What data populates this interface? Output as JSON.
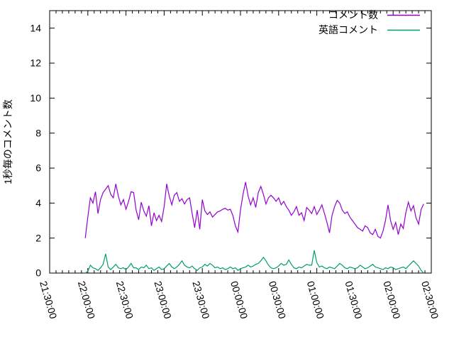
{
  "chart_data": {
    "type": "line",
    "title": "",
    "xlabel": "",
    "ylabel": "1秒毎のコメント数",
    "ylim": [
      0,
      15
    ],
    "ytick_step": 2,
    "ytick_labels": [
      "0",
      "2",
      "4",
      "6",
      "8",
      "10",
      "12",
      "14"
    ],
    "x_axis": {
      "range_minutes": [
        0,
        300
      ],
      "major_step_min": 30,
      "minor_step_min": 5,
      "labels": [
        "21:30:00",
        "22:00:00",
        "22:30:00",
        "23:00:00",
        "23:30:00",
        "00:00:00",
        "00:30:00",
        "01:00:00",
        "01:30:00",
        "02:00:00",
        "02:30:00"
      ]
    },
    "grid": false,
    "legend_position": "top-right-inside",
    "series": [
      {
        "name": "コメント数",
        "color": "#9400d3",
        "start_time": "21:58:00",
        "start_offset_min": 28,
        "step_min": 2,
        "values": [
          2.0,
          3.2,
          4.3,
          4.0,
          4.65,
          3.4,
          4.2,
          4.6,
          4.8,
          5.0,
          4.5,
          4.3,
          5.1,
          4.4,
          3.9,
          4.2,
          3.65,
          4.1,
          4.65,
          4.6,
          3.6,
          3.05,
          4.05,
          3.55,
          3.25,
          3.85,
          2.7,
          3.45,
          3.0,
          3.3,
          2.95,
          3.8,
          5.1,
          4.4,
          3.9,
          4.45,
          4.6,
          4.1,
          4.25,
          3.95,
          4.2,
          4.3,
          3.4,
          2.6,
          3.6,
          2.5,
          4.2,
          3.55,
          3.35,
          3.5,
          3.2,
          3.35,
          3.5,
          3.55,
          3.65,
          3.7,
          3.6,
          3.65,
          3.3,
          2.7,
          2.35,
          3.6,
          4.5,
          5.2,
          4.4,
          3.9,
          4.3,
          3.75,
          4.6,
          4.95,
          4.5,
          3.95,
          4.3,
          4.45,
          4.3,
          4.1,
          4.3,
          3.9,
          4.1,
          3.8,
          3.6,
          3.3,
          3.5,
          3.8,
          3.3,
          3.45,
          3.0,
          3.75,
          3.6,
          3.4,
          3.8,
          3.35,
          3.6,
          3.9,
          3.4,
          2.9,
          2.3,
          3.3,
          3.8,
          4.15,
          4.0,
          3.6,
          3.4,
          3.5,
          3.2,
          3.0,
          2.8,
          2.6,
          2.5,
          2.4,
          2.7,
          2.6,
          2.3,
          2.2,
          2.5,
          2.1,
          2.0,
          2.4,
          3.0,
          3.9,
          3.0,
          2.5,
          2.9,
          2.2,
          2.8,
          2.55,
          3.45,
          4.05,
          3.55,
          3.85,
          3.15,
          2.8,
          3.65,
          3.95
        ]
      },
      {
        "name": "英語コメント",
        "color": "#009e73",
        "start_time": "21:58:00",
        "start_offset_min": 28,
        "step_min": 2,
        "values": [
          0.0,
          0.1,
          0.45,
          0.3,
          0.25,
          0.15,
          0.3,
          0.5,
          1.1,
          0.35,
          0.2,
          0.35,
          0.5,
          0.3,
          0.25,
          0.3,
          0.2,
          0.35,
          0.55,
          0.3,
          0.3,
          0.2,
          0.35,
          0.3,
          0.45,
          0.25,
          0.3,
          0.15,
          0.25,
          0.35,
          0.2,
          0.25,
          0.4,
          0.55,
          0.35,
          0.25,
          0.35,
          0.5,
          0.7,
          0.45,
          0.35,
          0.3,
          0.4,
          0.25,
          0.15,
          0.3,
          0.35,
          0.5,
          0.4,
          0.55,
          0.45,
          0.3,
          0.35,
          0.25,
          0.3,
          0.2,
          0.25,
          0.35,
          0.25,
          0.3,
          0.15,
          0.25,
          0.3,
          0.35,
          0.45,
          0.35,
          0.4,
          0.5,
          0.55,
          0.7,
          0.9,
          0.7,
          0.45,
          0.3,
          0.25,
          0.3,
          0.4,
          0.55,
          0.45,
          0.5,
          0.75,
          0.5,
          0.3,
          0.25,
          0.35,
          0.3,
          0.4,
          0.5,
          0.45,
          0.45,
          1.3,
          0.6,
          0.35,
          0.4,
          0.3,
          0.25,
          0.35,
          0.3,
          0.25,
          0.4,
          0.55,
          0.45,
          0.3,
          0.25,
          0.35,
          0.3,
          0.25,
          0.3,
          0.45,
          0.35,
          0.25,
          0.3,
          0.4,
          0.5,
          0.35,
          0.3,
          0.25,
          0.2,
          0.3,
          0.25,
          0.35,
          0.3,
          0.2,
          0.25,
          0.3,
          0.35,
          0.25,
          0.4,
          0.55,
          0.7,
          0.55,
          0.4,
          0.15,
          0.0
        ]
      }
    ]
  },
  "colors": {
    "background": "#ffffff",
    "axis": "#000000",
    "text": "#000000",
    "series_comments": "#9400d3",
    "series_english": "#009e73"
  }
}
